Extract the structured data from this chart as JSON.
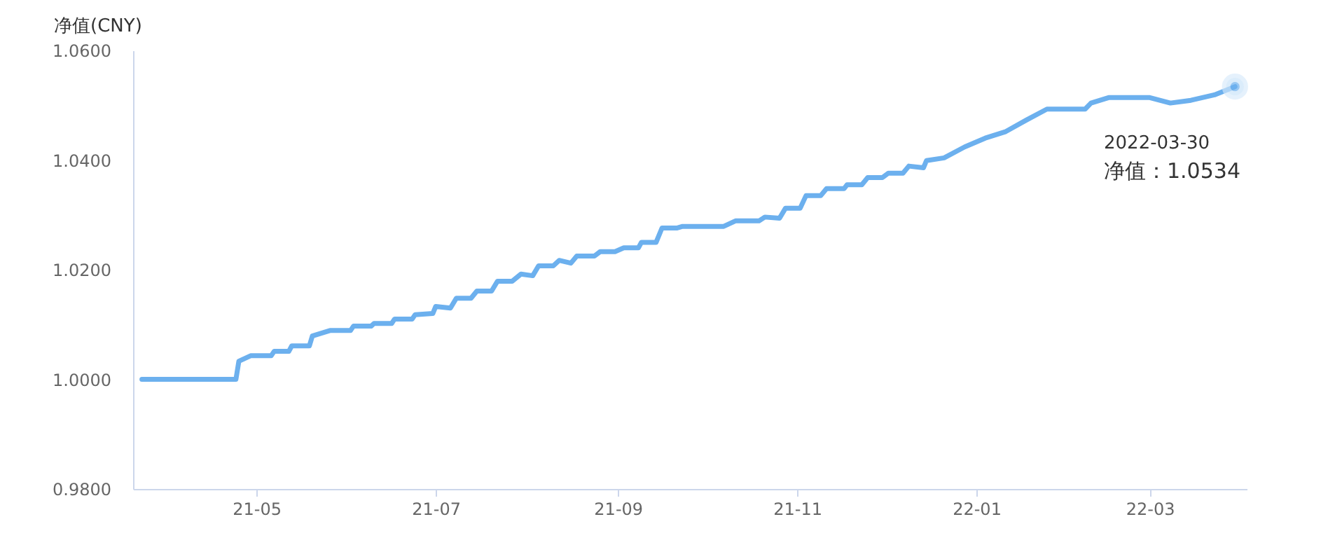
{
  "chart_data": {
    "type": "line",
    "ylabel": "净值(CNY)",
    "x": [
      "2021-03-23",
      "2021-04-24",
      "2021-04-25",
      "2021-04-29",
      "2021-05-06",
      "2021-05-07",
      "2021-05-12",
      "2021-05-13",
      "2021-05-19",
      "2021-05-20",
      "2021-05-26",
      "2021-06-02",
      "2021-06-03",
      "2021-06-09",
      "2021-06-10",
      "2021-06-16",
      "2021-06-17",
      "2021-06-23",
      "2021-06-24",
      "2021-06-30",
      "2021-07-01",
      "2021-07-06",
      "2021-07-08",
      "2021-07-13",
      "2021-07-15",
      "2021-07-20",
      "2021-07-22",
      "2021-07-27",
      "2021-07-30",
      "2021-08-03",
      "2021-08-05",
      "2021-08-10",
      "2021-08-12",
      "2021-08-16",
      "2021-08-18",
      "2021-08-24",
      "2021-08-26",
      "2021-08-31",
      "2021-09-03",
      "2021-09-08",
      "2021-09-09",
      "2021-09-14",
      "2021-09-16",
      "2021-09-21",
      "2021-09-23",
      "2021-10-07",
      "2021-10-11",
      "2021-10-19",
      "2021-10-21",
      "2021-10-26",
      "2021-10-28",
      "2021-11-02",
      "2021-11-04",
      "2021-11-09",
      "2021-11-11",
      "2021-11-17",
      "2021-11-18",
      "2021-11-23",
      "2021-11-25",
      "2021-11-30",
      "2021-12-02",
      "2021-12-07",
      "2021-12-09",
      "2021-12-14",
      "2021-12-15",
      "2021-12-21",
      "2021-12-28",
      "2022-01-04",
      "2022-01-11",
      "2022-01-18",
      "2022-01-25",
      "2022-02-07",
      "2022-02-09",
      "2022-02-15",
      "2022-02-22",
      "2022-03-01",
      "2022-03-08",
      "2022-03-15",
      "2022-03-23",
      "2022-03-30"
    ],
    "series": [
      {
        "color": "#6cb0ee",
        "values": [
          1.0,
          1.0,
          1.0033,
          1.0043,
          1.0043,
          1.0051,
          1.0051,
          1.0061,
          1.0061,
          1.0079,
          1.0089,
          1.0089,
          1.0097,
          1.0097,
          1.0102,
          1.0102,
          1.011,
          1.011,
          1.0118,
          1.012,
          1.0133,
          1.013,
          1.0148,
          1.0148,
          1.0161,
          1.0161,
          1.0179,
          1.0179,
          1.0192,
          1.0189,
          1.0207,
          1.0207,
          1.0217,
          1.0212,
          1.0225,
          1.0225,
          1.0233,
          1.0233,
          1.024,
          1.024,
          1.025,
          1.025,
          1.0276,
          1.0276,
          1.0279,
          1.0279,
          1.0289,
          1.0289,
          1.0296,
          1.0294,
          1.0312,
          1.0312,
          1.0335,
          1.0335,
          1.0348,
          1.0348,
          1.0355,
          1.0355,
          1.0368,
          1.0368,
          1.0376,
          1.0376,
          1.0389,
          1.0386,
          1.0399,
          1.0404,
          1.0424,
          1.044,
          1.0452,
          1.0473,
          1.0493,
          1.0493,
          1.0504,
          1.0514,
          1.0514,
          1.0514,
          1.0504,
          1.0509,
          1.0519,
          1.0534
        ]
      }
    ],
    "xlim": [
      "2021-03-20",
      "2022-04-03"
    ],
    "xticks": [
      {
        "value": "2021-05-01",
        "label": "21-05"
      },
      {
        "value": "2021-07-01",
        "label": "21-07"
      },
      {
        "value": "2021-09-01",
        "label": "21-09"
      },
      {
        "value": "2021-11-01",
        "label": "21-11"
      },
      {
        "value": "2022-01-01",
        "label": "22-01"
      },
      {
        "value": "2022-03-01",
        "label": "22-03"
      }
    ],
    "ylim": [
      0.98,
      1.06
    ],
    "yticks": [
      {
        "value": 0.98,
        "label": "0.9800"
      },
      {
        "value": 1.0,
        "label": "1.0000"
      },
      {
        "value": 1.02,
        "label": "1.0200"
      },
      {
        "value": 1.04,
        "label": "1.0400"
      },
      {
        "value": 1.06,
        "label": "1.0600"
      }
    ],
    "annotations": [
      "2022-03-30",
      "净值：1.0534"
    ],
    "grid": false
  }
}
